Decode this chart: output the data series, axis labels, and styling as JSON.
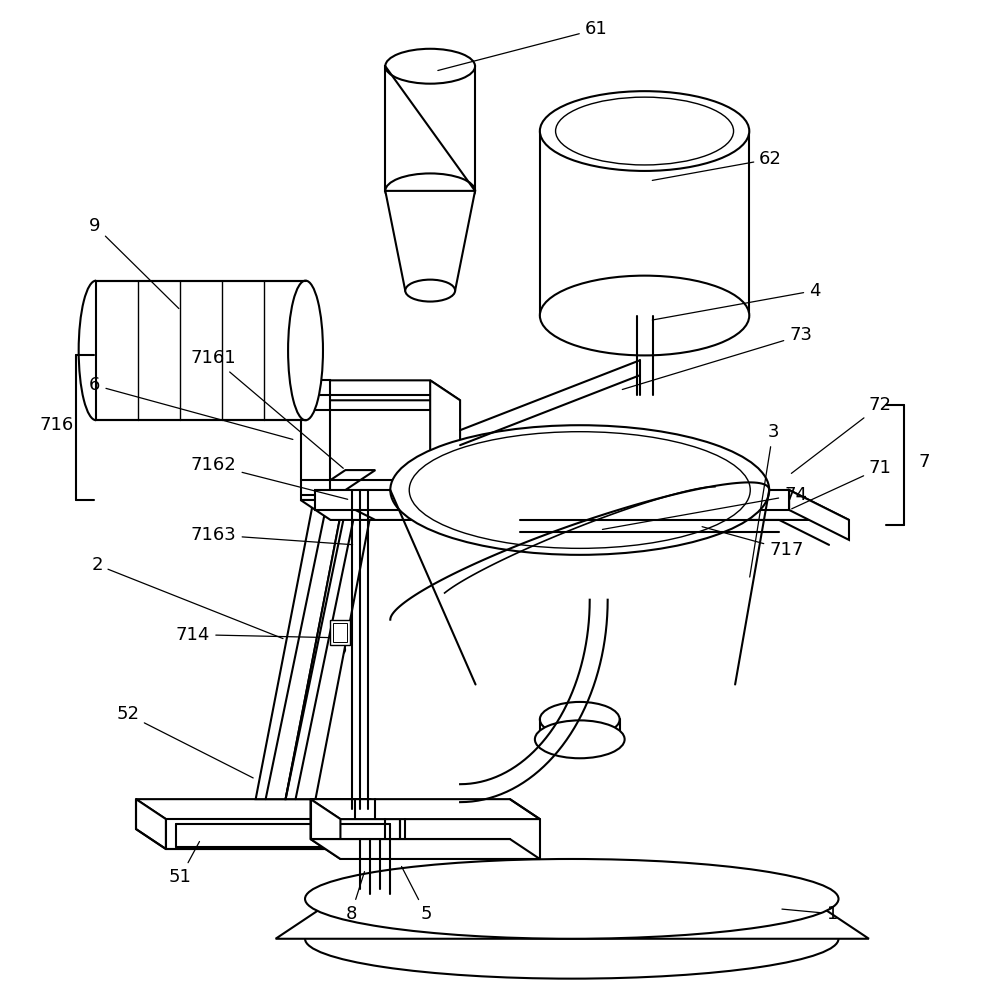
{
  "background": "#ffffff",
  "line_color": "#000000",
  "line_width": 1.5,
  "font_size": 13
}
